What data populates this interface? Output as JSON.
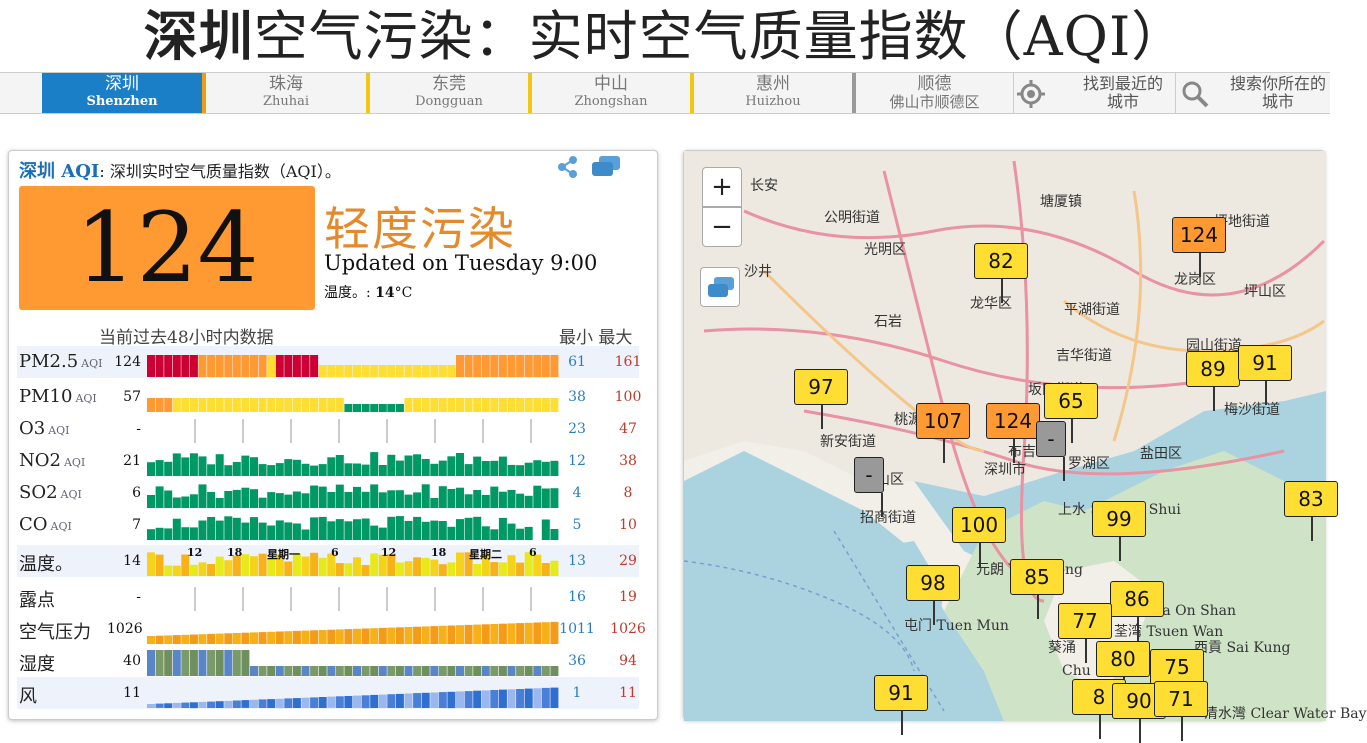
{
  "title": {
    "bold": "深圳",
    "rest": "空气污染：实时空气质量指数（AQI）"
  },
  "cities": [
    {
      "zh": "深圳",
      "en": "Shenzhen",
      "active": true
    },
    {
      "zh": "珠海",
      "en": "Zhuhai",
      "active": false
    },
    {
      "zh": "东莞",
      "en": "Dongguan",
      "active": false
    },
    {
      "zh": "中山",
      "en": "Zhongshan",
      "active": false
    },
    {
      "zh": "惠州",
      "en": "Huizhou",
      "active": false
    },
    {
      "zh": "顺德",
      "en": "佛山市顺德区",
      "active": false
    }
  ],
  "tools": {
    "nearest": "找到最近的城市",
    "search": "搜索你所在的城市"
  },
  "panel": {
    "city_aqi": "深圳 AQI",
    "subtitle": "深圳实时空气质量指数（AQI）。",
    "aqi": "124",
    "level": "轻度污染",
    "updated": "Updated on Tuesday 9:00",
    "temp_label": "温度。:",
    "temp_value": "14",
    "temp_unit": "°C",
    "history_header": "当前过去48小时内数据",
    "min_label": "最小",
    "max_label": "最大",
    "tick_labels": [
      "12",
      "18",
      "星期一",
      "6",
      "12",
      "18",
      "星期二",
      "6"
    ],
    "aqi_suffix": "AQI"
  },
  "rows": [
    {
      "label": "PM2.5",
      "aqi": true,
      "value": "124",
      "min": "61",
      "max": "161",
      "shade": true
    },
    {
      "label": "PM10",
      "aqi": true,
      "value": "57",
      "min": "38",
      "max": "100",
      "shade": false
    },
    {
      "label": "O3",
      "aqi": true,
      "value": "-",
      "min": "23",
      "max": "47",
      "shade": false
    },
    {
      "label": "NO2",
      "aqi": true,
      "value": "21",
      "min": "12",
      "max": "38",
      "shade": false
    },
    {
      "label": "SO2",
      "aqi": true,
      "value": "6",
      "min": "4",
      "max": "8",
      "shade": false
    },
    {
      "label": "CO",
      "aqi": true,
      "value": "7",
      "min": "5",
      "max": "10",
      "shade": false
    },
    {
      "label": "温度。",
      "aqi": false,
      "value": "14",
      "min": "13",
      "max": "29",
      "shade": true
    },
    {
      "label": "露点",
      "aqi": false,
      "value": "-",
      "min": "16",
      "max": "19",
      "shade": false
    },
    {
      "label": "空气压力",
      "aqi": false,
      "value": "1026",
      "min": "1011",
      "max": "1026",
      "shade": false
    },
    {
      "label": "湿度",
      "aqi": false,
      "value": "40",
      "min": "36",
      "max": "94",
      "shade": false
    },
    {
      "label": "风",
      "aqi": false,
      "value": "11",
      "min": "1",
      "max": "11",
      "shade": true
    }
  ],
  "map": {
    "labels": [
      "长安",
      "公明街道",
      "光明区",
      "塘厦镇",
      "坪地街道",
      "沙井",
      "龙华区",
      "平湖街道",
      "龙岗区",
      "坪山区",
      "石岩",
      "园山街道",
      "吉华街道",
      "桃源",
      "坂田街道",
      "新安街道",
      "布吉",
      "罗湖区",
      "深圳市",
      "盐田区",
      "南山区",
      "招商街道",
      "上水 Sheung Shui",
      "梅沙街道",
      "元朗 Yuen Long",
      "屯门 Tuen Mun",
      "葵涌",
      "荃湾 Tsuen Wan",
      "西貢 Sai Kung",
      "清水灣 Clear Water Bay",
      "Ma On Shan",
      "Chu"
    ],
    "markers": [
      "82",
      "124",
      "89",
      "91",
      "97",
      "107",
      "124",
      "65",
      "-",
      "-",
      "83",
      "100",
      "99",
      "98",
      "85",
      "86",
      "77",
      "80",
      "75",
      "91",
      "8",
      "90",
      "71"
    ]
  },
  "colors": {
    "moderate": "#ffde33",
    "usg": "#ff9a33",
    "unhealthy": "#cc0033",
    "good": "#009966",
    "accent": "#1a7fc6"
  }
}
